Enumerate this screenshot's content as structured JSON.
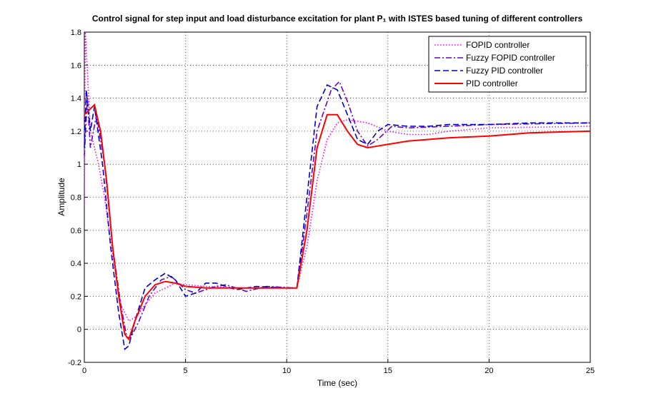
{
  "chart_data": {
    "type": "line",
    "title": "Control signal for step input and load disturbance excitation for plant P₁ with ISTES based tuning of different controllers",
    "xlabel": "Time (sec)",
    "ylabel": "Amplitude",
    "xlim": [
      0,
      25
    ],
    "xticks": [
      0,
      5,
      10,
      15,
      20,
      25
    ],
    "ylim": [
      -0.2,
      1.8
    ],
    "yticks": [
      -0.2,
      0,
      0.2,
      0.4,
      0.6,
      0.8,
      1,
      1.2,
      1.4,
      1.6,
      1.8
    ],
    "grid": true,
    "legend": "upper right",
    "series": [
      {
        "name": "FOPID controller",
        "color": "#ff00ff",
        "style": "dotted",
        "x": [
          0,
          0.05,
          0.3,
          0.7,
          1,
          1.4,
          1.8,
          2.2,
          2.6,
          3,
          3.5,
          4,
          4.5,
          5,
          6,
          8,
          10.5,
          11,
          11.5,
          12,
          12.5,
          13,
          14,
          15,
          16,
          17,
          18,
          20,
          25
        ],
        "values": [
          0.75,
          1.8,
          1.2,
          1.0,
          0.8,
          0.45,
          0.15,
          0.05,
          0.08,
          0.15,
          0.22,
          0.25,
          0.28,
          0.27,
          0.26,
          0.25,
          0.25,
          0.5,
          0.9,
          1.15,
          1.25,
          1.27,
          1.25,
          1.2,
          1.18,
          1.18,
          1.2,
          1.22,
          1.23
        ]
      },
      {
        "name": "Fuzzy FOPID controller",
        "color": "#6600cc",
        "style": "dashdot",
        "x": [
          0,
          0.15,
          0.3,
          0.6,
          1,
          1.4,
          1.8,
          2.1,
          2.3,
          2.7,
          3.2,
          3.8,
          4.3,
          5,
          5.5,
          6.5,
          7,
          8,
          9,
          10.5,
          11,
          11.5,
          12.2,
          12.6,
          13,
          13.5,
          14,
          14.5,
          15.2,
          16,
          18,
          20,
          25
        ],
        "values": [
          1.05,
          1.4,
          1.1,
          1.3,
          1.0,
          0.5,
          0.15,
          -0.05,
          -0.05,
          0.05,
          0.2,
          0.3,
          0.32,
          0.24,
          0.22,
          0.26,
          0.27,
          0.23,
          0.26,
          0.25,
          0.7,
          1.2,
          1.45,
          1.5,
          1.38,
          1.2,
          1.11,
          1.15,
          1.23,
          1.22,
          1.23,
          1.24,
          1.25
        ]
      },
      {
        "name": "Fuzzy PID controller",
        "color": "#0000cc",
        "style": "dashed",
        "x": [
          0,
          0.1,
          0.3,
          0.5,
          0.9,
          1.3,
          1.7,
          2,
          2.2,
          2.5,
          3,
          3.5,
          4,
          4.5,
          5,
          5.5,
          6,
          6.5,
          7.5,
          8.5,
          10,
          10.5,
          11,
          11.5,
          12,
          12.5,
          13,
          13.5,
          14,
          14.5,
          15,
          16,
          17,
          18,
          20,
          22,
          25
        ],
        "values": [
          1.1,
          1.45,
          1.2,
          1.35,
          1.0,
          0.5,
          0.1,
          -0.12,
          -0.1,
          0.05,
          0.25,
          0.3,
          0.34,
          0.3,
          0.2,
          0.22,
          0.28,
          0.28,
          0.24,
          0.26,
          0.25,
          0.25,
          0.8,
          1.35,
          1.48,
          1.45,
          1.3,
          1.15,
          1.12,
          1.2,
          1.24,
          1.23,
          1.23,
          1.24,
          1.24,
          1.25,
          1.25
        ]
      },
      {
        "name": "PID controller",
        "color": "#ff0000",
        "style": "solid",
        "x": [
          0,
          0.5,
          0.8,
          1.1,
          1.4,
          1.7,
          2,
          2.2,
          2.5,
          3,
          3.5,
          4,
          4.5,
          5,
          6,
          10.5,
          11,
          11.5,
          12,
          12.5,
          13,
          13.5,
          14,
          14.5,
          15,
          16,
          17,
          18,
          20,
          22,
          25
        ],
        "values": [
          1.3,
          1.36,
          1.2,
          0.9,
          0.5,
          0.2,
          -0.03,
          -0.06,
          0.05,
          0.2,
          0.27,
          0.29,
          0.28,
          0.26,
          0.25,
          0.25,
          0.6,
          1.1,
          1.3,
          1.3,
          1.2,
          1.12,
          1.1,
          1.11,
          1.12,
          1.14,
          1.15,
          1.16,
          1.17,
          1.19,
          1.2
        ]
      }
    ]
  }
}
